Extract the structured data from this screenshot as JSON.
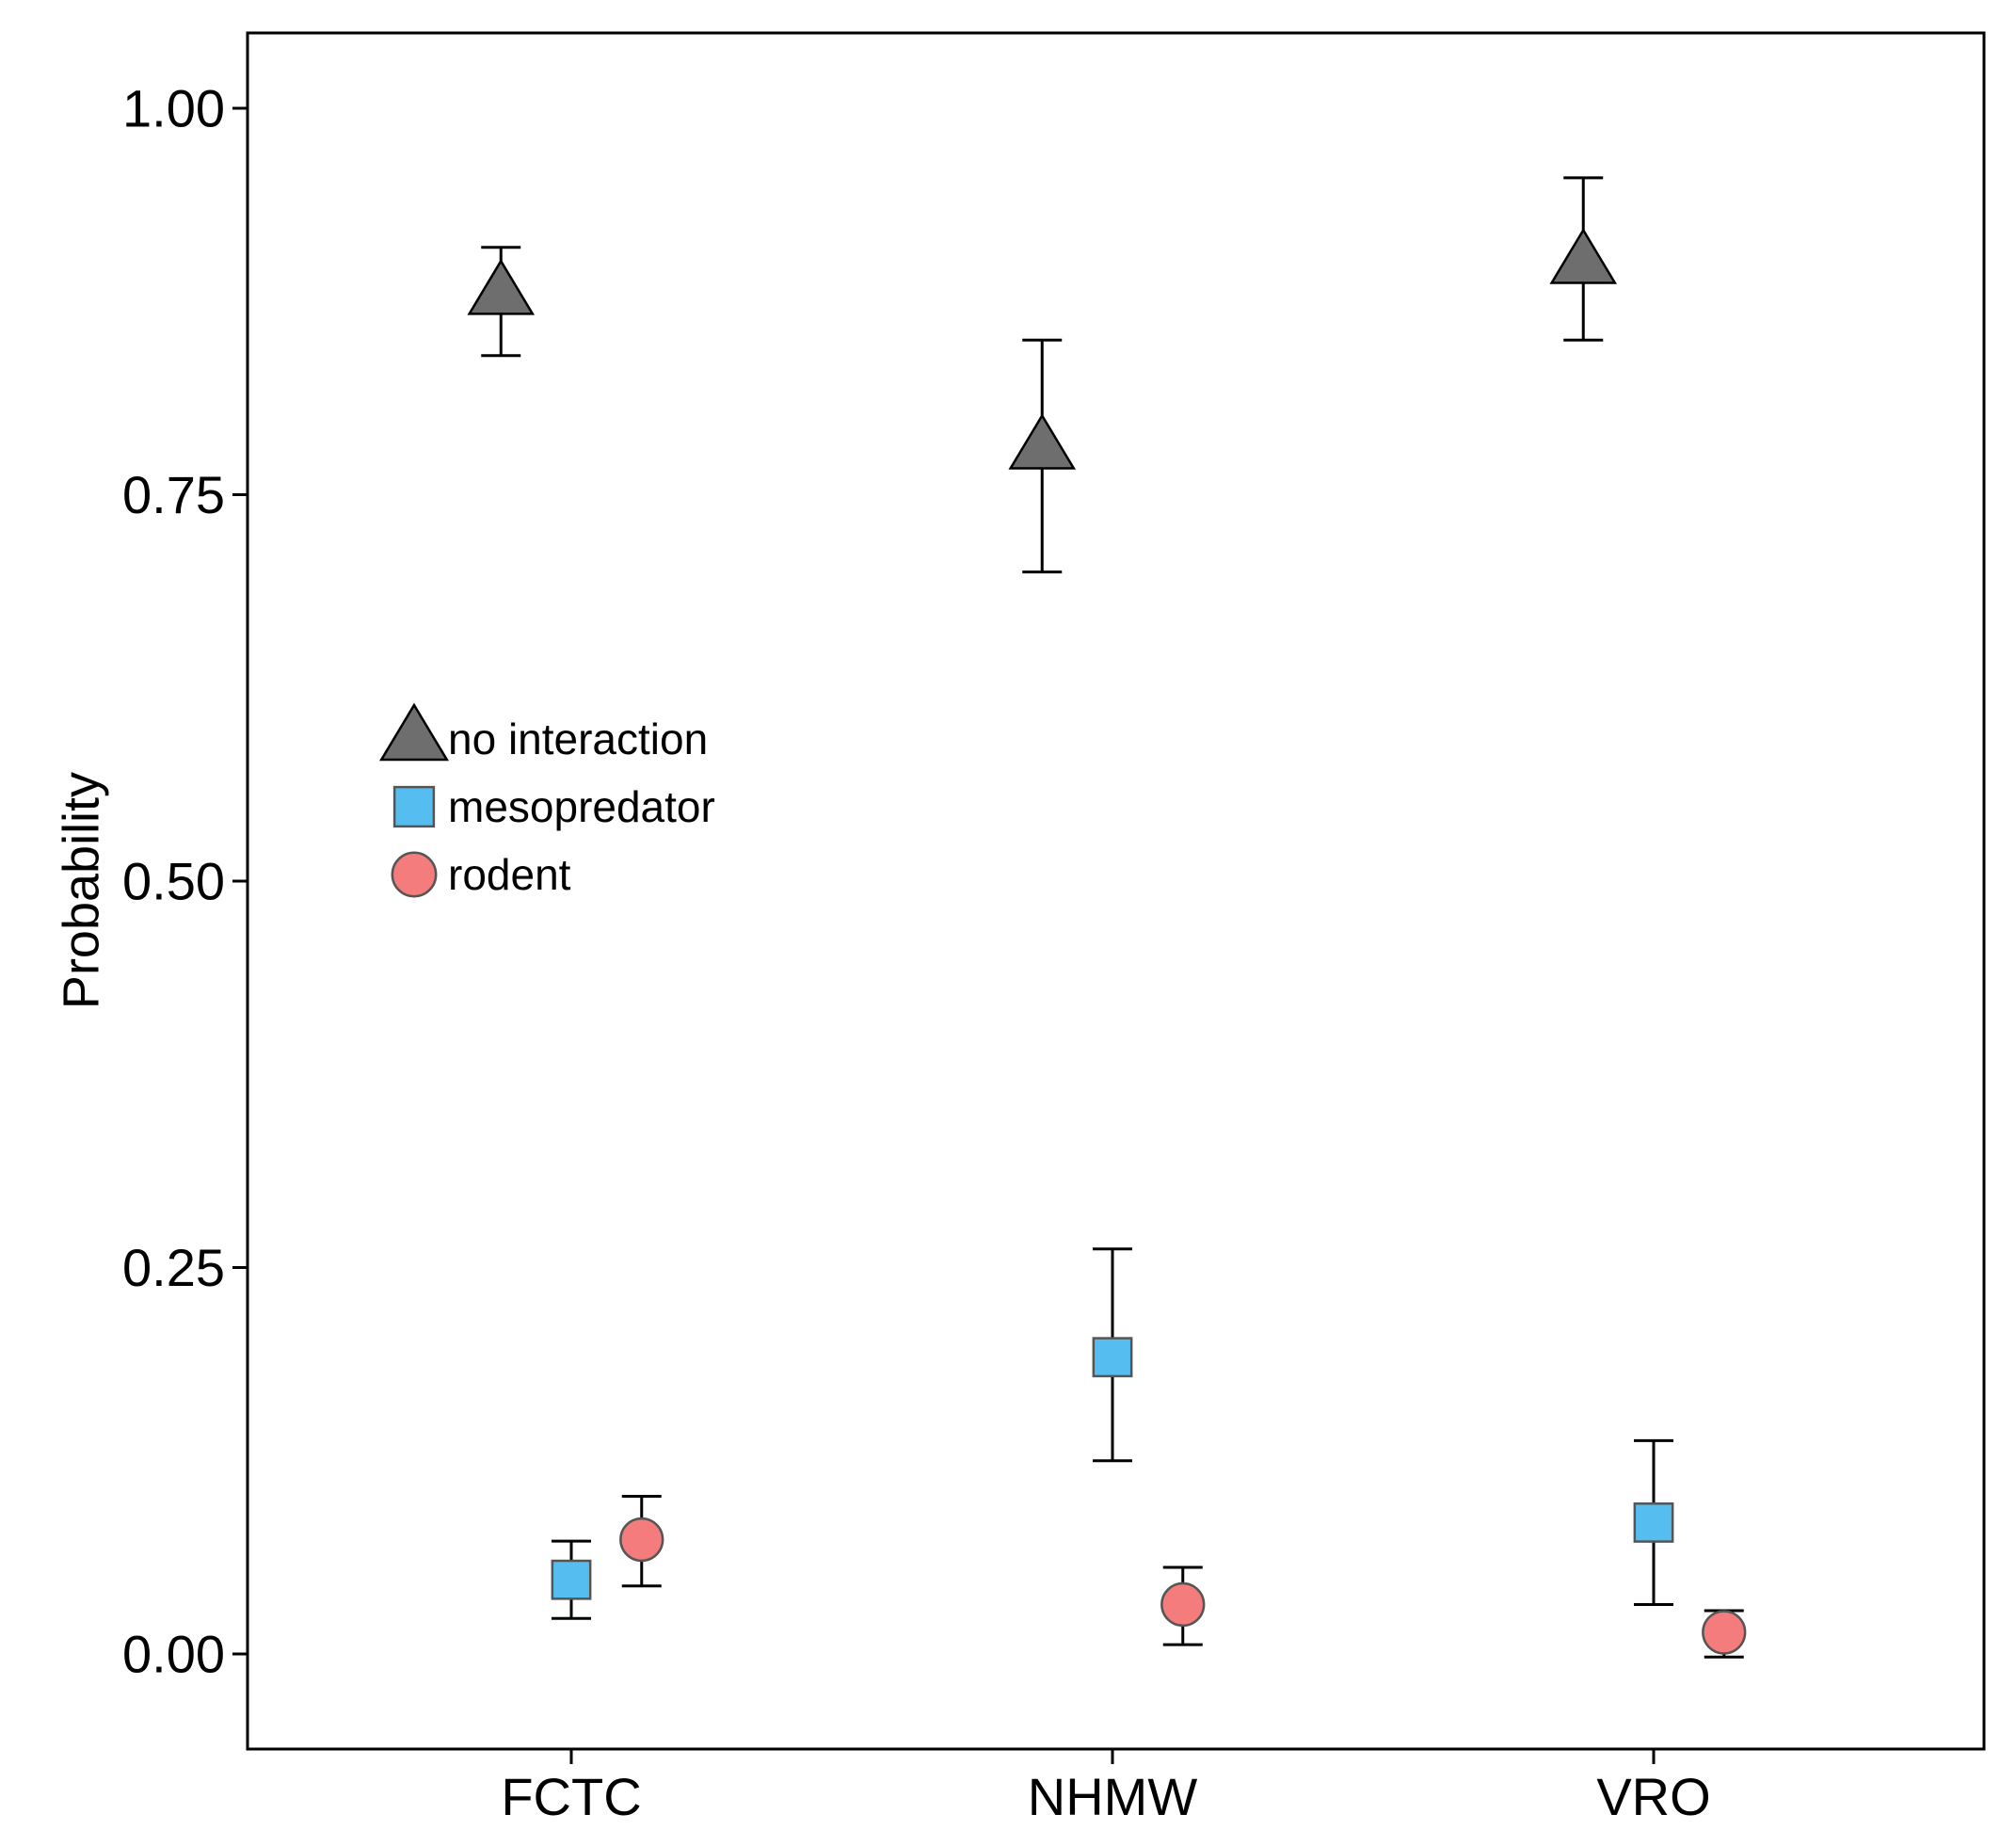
{
  "chart_data": {
    "type": "scatter",
    "title": "",
    "xlabel": "",
    "ylabel": "Probability",
    "categories": [
      "FCTC",
      "NHMW",
      "VRO"
    ],
    "ylim": [
      -0.06,
      1.05
    ],
    "yticks": [
      0.0,
      0.25,
      0.5,
      0.75,
      1.0
    ],
    "ytick_labels": [
      "0.00",
      "0.25",
      "0.50",
      "0.75",
      "1.00"
    ],
    "grid": false,
    "legend_position": "middle-left",
    "series": [
      {
        "name": "no interaction",
        "marker": "triangle",
        "color": "#6e6e6e",
        "offset": -0.13,
        "values": [
          0.88,
          0.78,
          0.9
        ],
        "lower": [
          0.84,
          0.7,
          0.85
        ],
        "upper": [
          0.91,
          0.85,
          0.955
        ]
      },
      {
        "name": "mesopredator",
        "marker": "square",
        "color": "#56bdf0",
        "offset": 0.0,
        "values": [
          0.048,
          0.192,
          0.085
        ],
        "lower": [
          0.023,
          0.125,
          0.032
        ],
        "upper": [
          0.073,
          0.262,
          0.138
        ]
      },
      {
        "name": "rodent",
        "marker": "circle",
        "color": "#f47c7c",
        "offset": 0.13,
        "values": [
          0.074,
          0.032,
          0.014
        ],
        "lower": [
          0.044,
          0.006,
          -0.002
        ],
        "upper": [
          0.102,
          0.056,
          0.028
        ]
      }
    ]
  }
}
